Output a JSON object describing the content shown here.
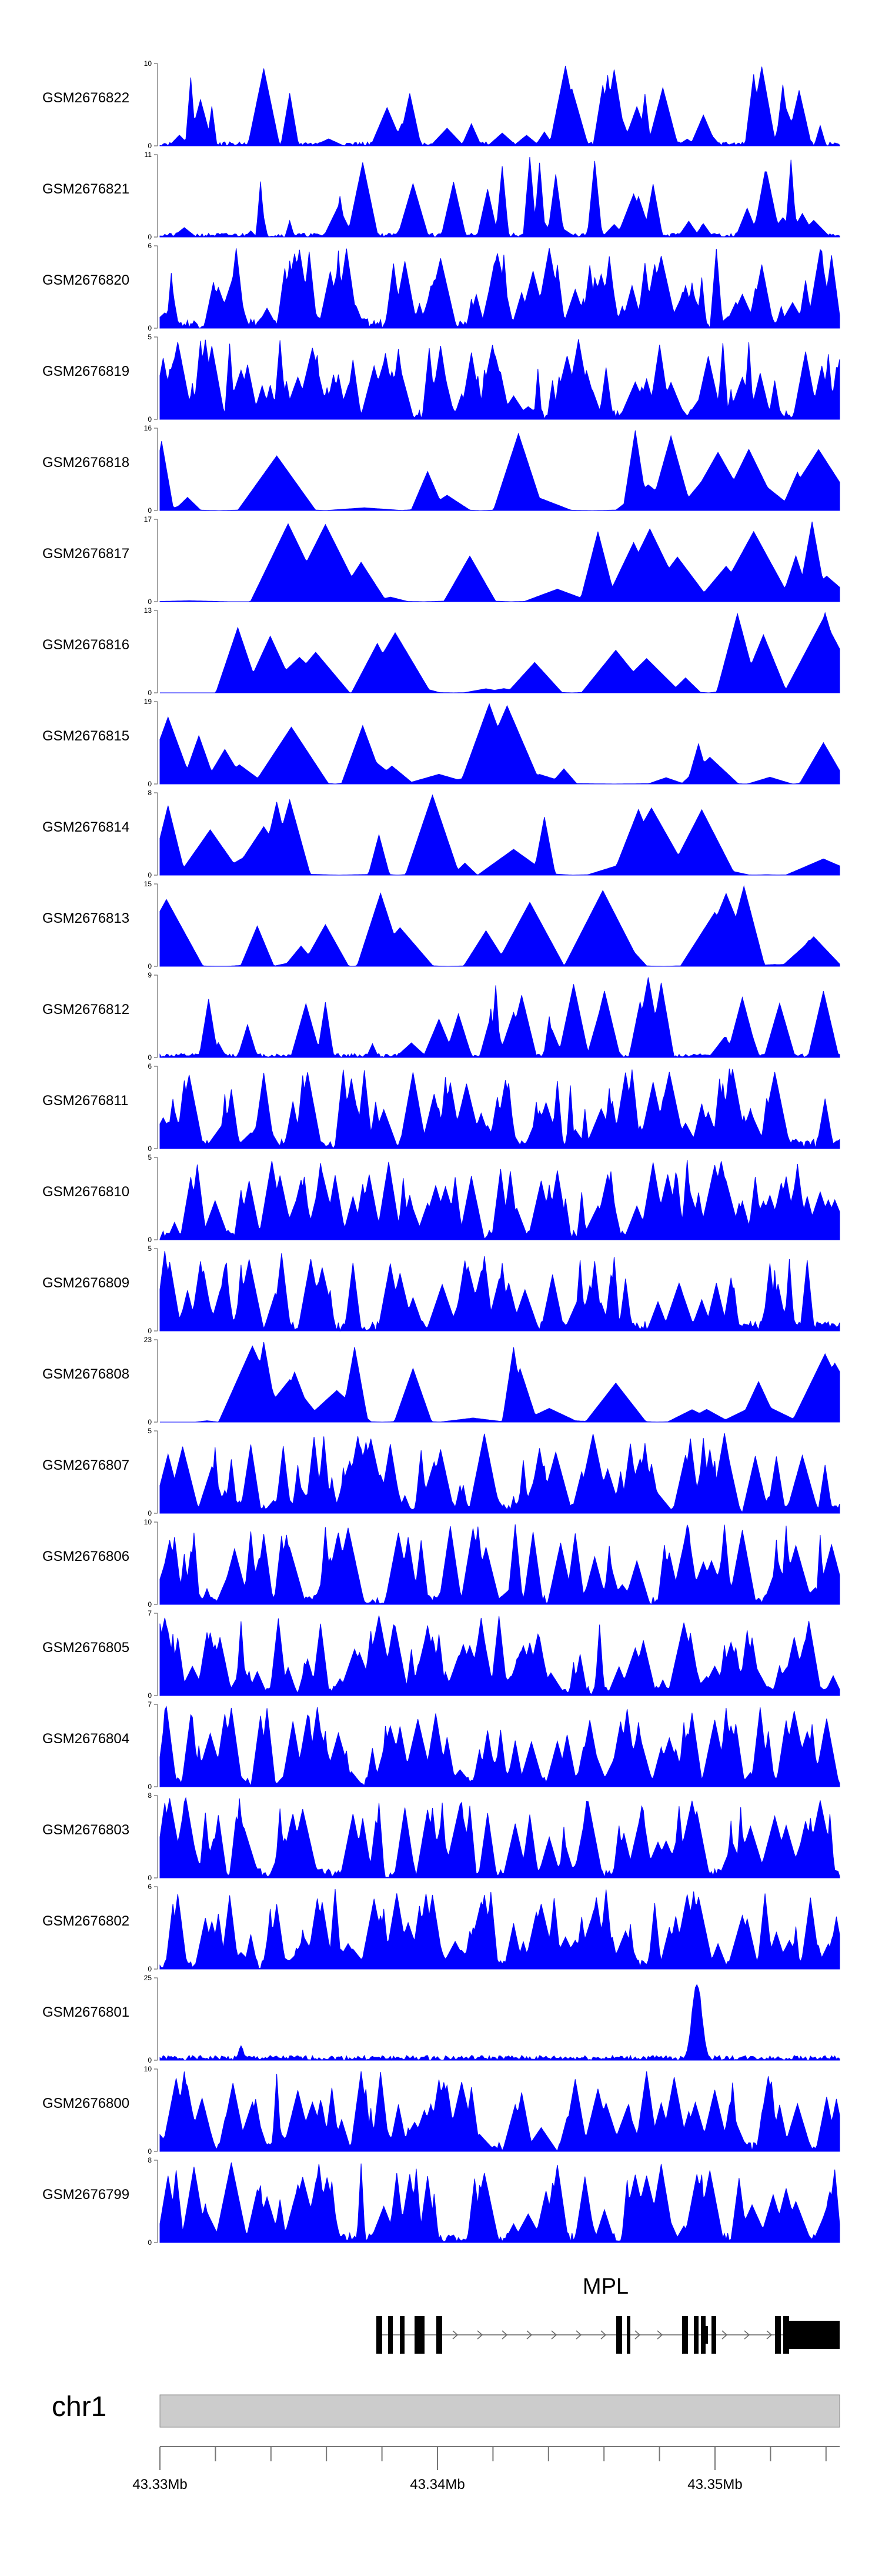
{
  "chart_data": {
    "type": "area",
    "title": "",
    "color": "#0000ff",
    "x_range": [
      43.33,
      43.3545
    ],
    "x_unit": "Mb",
    "tracks": [
      {
        "name": "GSM2676822",
        "ymax": 10,
        "seed": 22,
        "style": "peaky"
      },
      {
        "name": "GSM2676821",
        "ymax": 11,
        "seed": 21,
        "style": "peaky"
      },
      {
        "name": "GSM2676820",
        "ymax": 6,
        "seed": 20,
        "style": "dense"
      },
      {
        "name": "GSM2676819",
        "ymax": 5,
        "seed": 19,
        "style": "dense"
      },
      {
        "name": "GSM2676818",
        "ymax": 16,
        "seed": 18,
        "style": "sparse"
      },
      {
        "name": "GSM2676817",
        "ymax": 17,
        "seed": 17,
        "style": "sparse"
      },
      {
        "name": "GSM2676816",
        "ymax": 13,
        "seed": 16,
        "style": "sparse"
      },
      {
        "name": "GSM2676815",
        "ymax": 19,
        "seed": 15,
        "style": "sparse"
      },
      {
        "name": "GSM2676814",
        "ymax": 8,
        "seed": 14,
        "style": "sparse"
      },
      {
        "name": "GSM2676813",
        "ymax": 15,
        "seed": 13,
        "style": "sparse"
      },
      {
        "name": "GSM2676812",
        "ymax": 9,
        "seed": 12,
        "style": "peaky"
      },
      {
        "name": "GSM2676811",
        "ymax": 6,
        "seed": 11,
        "style": "dense"
      },
      {
        "name": "GSM2676810",
        "ymax": 5,
        "seed": 10,
        "style": "dense"
      },
      {
        "name": "GSM2676809",
        "ymax": 5,
        "seed": 9,
        "style": "dense"
      },
      {
        "name": "GSM2676808",
        "ymax": 23,
        "seed": 8,
        "style": "sparse"
      },
      {
        "name": "GSM2676807",
        "ymax": 5,
        "seed": 7,
        "style": "dense"
      },
      {
        "name": "GSM2676806",
        "ymax": 10,
        "seed": 6,
        "style": "dense"
      },
      {
        "name": "GSM2676805",
        "ymax": 7,
        "seed": 5,
        "style": "dense"
      },
      {
        "name": "GSM2676804",
        "ymax": 7,
        "seed": 4,
        "style": "dense"
      },
      {
        "name": "GSM2676803",
        "ymax": 8,
        "seed": 3,
        "style": "dense"
      },
      {
        "name": "GSM2676802",
        "ymax": 6,
        "seed": 2,
        "style": "dense"
      },
      {
        "name": "GSM2676801",
        "ymax": 25,
        "seed": 1,
        "style": "single"
      },
      {
        "name": "GSM2676800",
        "ymax": 10,
        "seed": 100,
        "style": "dense"
      },
      {
        "name": "GSM2676799",
        "ymax": 8,
        "seed": 99,
        "style": "dense"
      }
    ],
    "y_min_label": "0",
    "gene": {
      "name": "MPL"
    },
    "chromosome": "chr1",
    "axis_tick_labels": [
      "43.33Mb",
      "43.34Mb",
      "43.35Mb"
    ]
  }
}
